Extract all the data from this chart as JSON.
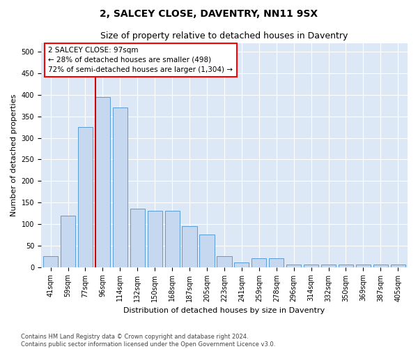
{
  "title": "2, SALCEY CLOSE, DAVENTRY, NN11 9SX",
  "subtitle": "Size of property relative to detached houses in Daventry",
  "xlabel": "Distribution of detached houses by size in Daventry",
  "ylabel": "Number of detached properties",
  "footer_line1": "Contains HM Land Registry data © Crown copyright and database right 2024.",
  "footer_line2": "Contains public sector information licensed under the Open Government Licence v3.0.",
  "categories": [
    "41sqm",
    "59sqm",
    "77sqm",
    "96sqm",
    "114sqm",
    "132sqm",
    "150sqm",
    "168sqm",
    "187sqm",
    "205sqm",
    "223sqm",
    "241sqm",
    "259sqm",
    "278sqm",
    "296sqm",
    "314sqm",
    "332sqm",
    "350sqm",
    "369sqm",
    "387sqm",
    "405sqm"
  ],
  "values": [
    25,
    120,
    325,
    395,
    370,
    135,
    130,
    130,
    95,
    75,
    25,
    10,
    20,
    20,
    5,
    5,
    5,
    5,
    5,
    5,
    5
  ],
  "bar_color": "#c5d8ef",
  "bar_edge_color": "#5b9bd5",
  "property_line_color": "#cc0000",
  "property_bin_index": 3,
  "ylim": [
    0,
    520
  ],
  "yticks": [
    0,
    50,
    100,
    150,
    200,
    250,
    300,
    350,
    400,
    450,
    500
  ],
  "background_color": "#dce8f5",
  "title_fontsize": 10,
  "subtitle_fontsize": 9,
  "axis_label_fontsize": 8,
  "tick_fontsize": 7,
  "annotation_fontsize": 7.5,
  "footer_fontsize": 6
}
